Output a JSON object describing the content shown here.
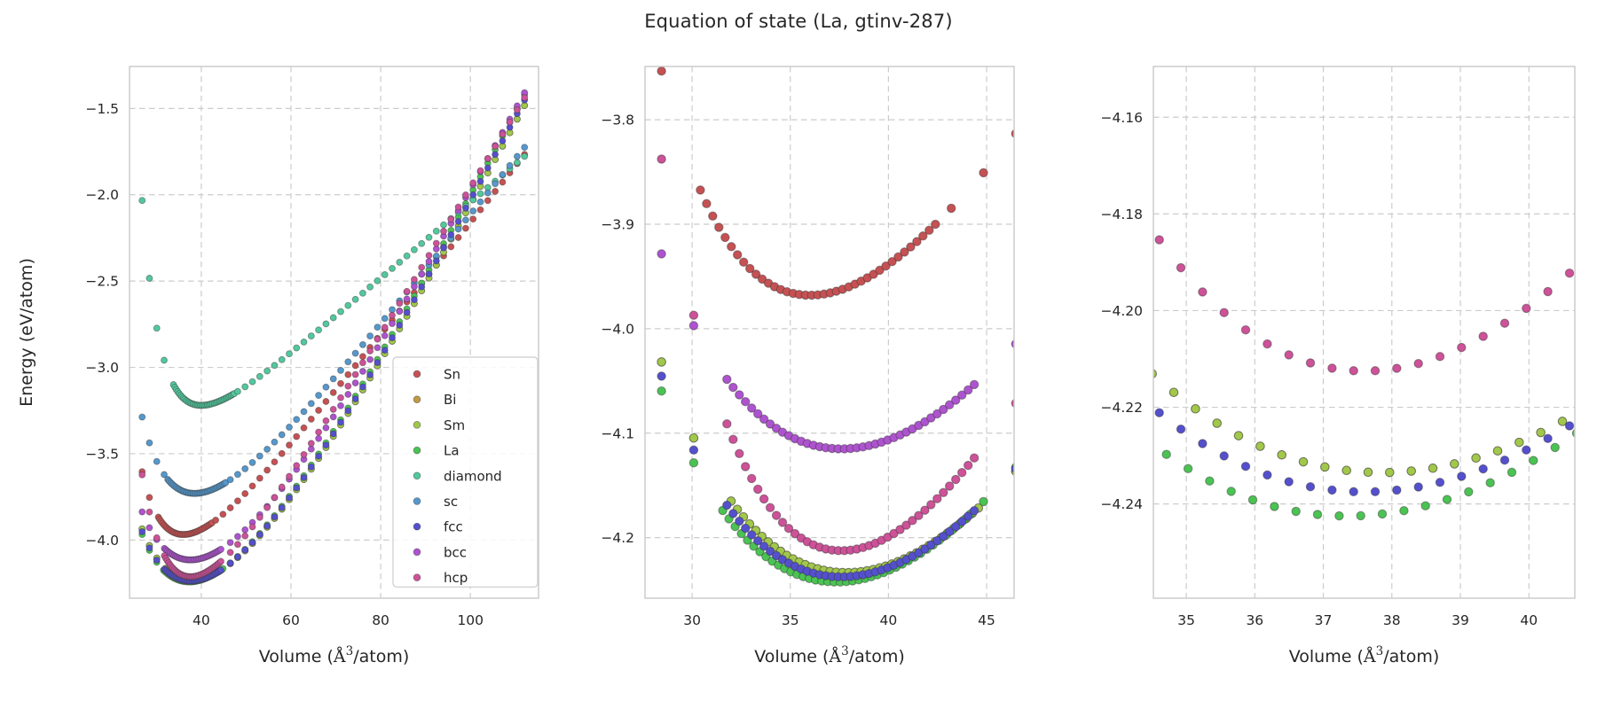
{
  "chart_data": {
    "type": "scatter",
    "title": "Equation of state (La, gtinv-287)",
    "ylabel": "Energy (eV/atom)",
    "xlabel": "Volume (Å³/atom)",
    "xlabel_parts": {
      "pre": "Volume (",
      "unit": "Å",
      "sup": "3",
      "post": "/atom)"
    },
    "grid": {
      "on": true,
      "linestyle": "dashed",
      "color": "#cccccc"
    },
    "frame_color": "#c9c9c9",
    "text_color": "#262626",
    "legend": {
      "position": "lower right of first panel",
      "entries": [
        "Sn",
        "Bi",
        "Sm",
        "La",
        "diamond",
        "sc",
        "fcc",
        "bcc",
        "hcp"
      ]
    },
    "model": "E(V) = E0 + C*((V0/V)^p + p*(V/V0) - (p+1)); minima at (V0, E0) in (Angstrom^3/atom, eV/atom)",
    "sampling": {
      "coarse_start": 26.8,
      "coarse_end": 112.4,
      "coarse_step": 1.64,
      "fine_lo_frac": 0.845,
      "fine_hi_frac": 1.185,
      "fine_step": 0.315,
      "dedupe_margin": 0.45
    },
    "series": [
      {
        "name": "Sn",
        "color": "#c65153",
        "V0": 36.0,
        "E0": -3.968,
        "p": 4.0,
        "C": 0.295
      },
      {
        "name": "Bi",
        "color": "#c19b43",
        "V0": 37.85,
        "E0": -4.2335,
        "p": 1.4,
        "C": 1.4
      },
      {
        "name": "Sm",
        "color": "#a2c84b",
        "V0": 37.85,
        "E0": -4.2335,
        "p": 1.4,
        "C": 1.4
      },
      {
        "name": "La",
        "color": "#4bc353",
        "V0": 37.35,
        "E0": -4.2425,
        "p": 1.4,
        "C": 1.4
      },
      {
        "name": "diamond",
        "color": "#52c89d",
        "V0": 40.0,
        "E0": -3.22,
        "p": 6.0,
        "C": 0.147
      },
      {
        "name": "sc",
        "color": "#5598cc",
        "V0": 38.5,
        "E0": -3.73,
        "p": 3.0,
        "C": 0.42
      },
      {
        "name": "fcc",
        "color": "#5450cd",
        "V0": 37.6,
        "E0": -4.2375,
        "p": 1.4,
        "C": 1.4
      },
      {
        "name": "bcc",
        "color": "#ae53cf",
        "V0": 37.6,
        "E0": -4.115,
        "p": 1.4,
        "C": 1.36
      },
      {
        "name": "hcp",
        "color": "#cd5298",
        "V0": 37.6,
        "E0": -4.2125,
        "p": 3.5,
        "C": 0.466
      }
    ],
    "minima": {
      "Sn": [
        36.0,
        -3.968
      ],
      "Bi": [
        37.85,
        -4.2335
      ],
      "Sm": [
        37.85,
        -4.2335
      ],
      "La": [
        37.35,
        -4.2425
      ],
      "diamond": [
        40.0,
        -3.22
      ],
      "sc": [
        38.5,
        -3.73
      ],
      "fcc": [
        37.6,
        -4.2375
      ],
      "bcc": [
        37.6,
        -4.115
      ],
      "hcp": [
        37.6,
        -4.2125
      ]
    },
    "panels": [
      {
        "xlim": [
          24.0,
          115.2
        ],
        "ylim": [
          -4.337,
          -1.257
        ],
        "xticks": [
          40,
          60,
          80,
          100
        ],
        "yticks": [
          -1.5,
          -2.0,
          -2.5,
          -3.0,
          -3.5,
          -4.0
        ],
        "x_decimals": 0,
        "y_decimals": 1,
        "show_ylabel": true,
        "show_legend": true
      },
      {
        "xlim": [
          27.6,
          46.4
        ],
        "ylim": [
          -4.258,
          -3.749
        ],
        "xticks": [
          30,
          35,
          40,
          45
        ],
        "yticks": [
          -3.8,
          -3.9,
          -4.0,
          -4.1,
          -4.2
        ],
        "x_decimals": 0,
        "y_decimals": 1,
        "show_ylabel": false,
        "show_legend": false
      },
      {
        "xlim": [
          34.52,
          40.67
        ],
        "ylim": [
          -4.2595,
          -4.1495
        ],
        "xticks": [
          35,
          36,
          37,
          38,
          39,
          40
        ],
        "yticks": [
          -4.16,
          -4.18,
          -4.2,
          -4.22,
          -4.24
        ],
        "x_decimals": 0,
        "y_decimals": 2,
        "show_ylabel": false,
        "show_legend": false
      }
    ]
  }
}
